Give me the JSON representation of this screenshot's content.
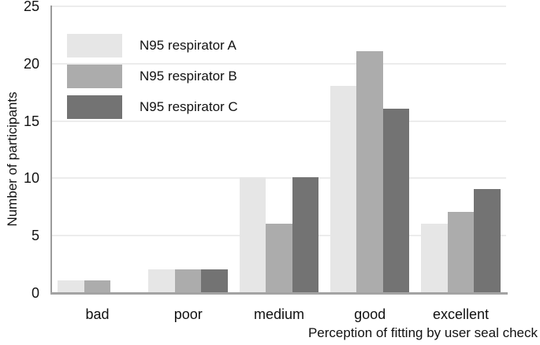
{
  "chart_data": {
    "type": "bar",
    "title": "",
    "xlabel": "Perception of fitting by user seal check",
    "ylabel": "Number of participants",
    "categories": [
      "bad",
      "poor",
      "medium",
      "good",
      "excellent"
    ],
    "series": [
      {
        "name": "N95 respirator A",
        "color": "#e6e6e6",
        "values": [
          1,
          2,
          10,
          18,
          6
        ]
      },
      {
        "name": "N95 respirator B",
        "color": "#acacac",
        "values": [
          1,
          2,
          6,
          21,
          7
        ]
      },
      {
        "name": "N95 respirator C",
        "color": "#737373",
        "values": [
          0,
          2,
          10,
          16,
          9
        ]
      }
    ],
    "ylim": [
      0,
      25
    ],
    "yticks": [
      0,
      5,
      10,
      15,
      20,
      25
    ],
    "grid": true,
    "legend_position": "top-left"
  },
  "colors": {
    "gridline": "#ececec",
    "axis": "#a0a0a0",
    "text": "#111111",
    "background": "#ffffff"
  }
}
